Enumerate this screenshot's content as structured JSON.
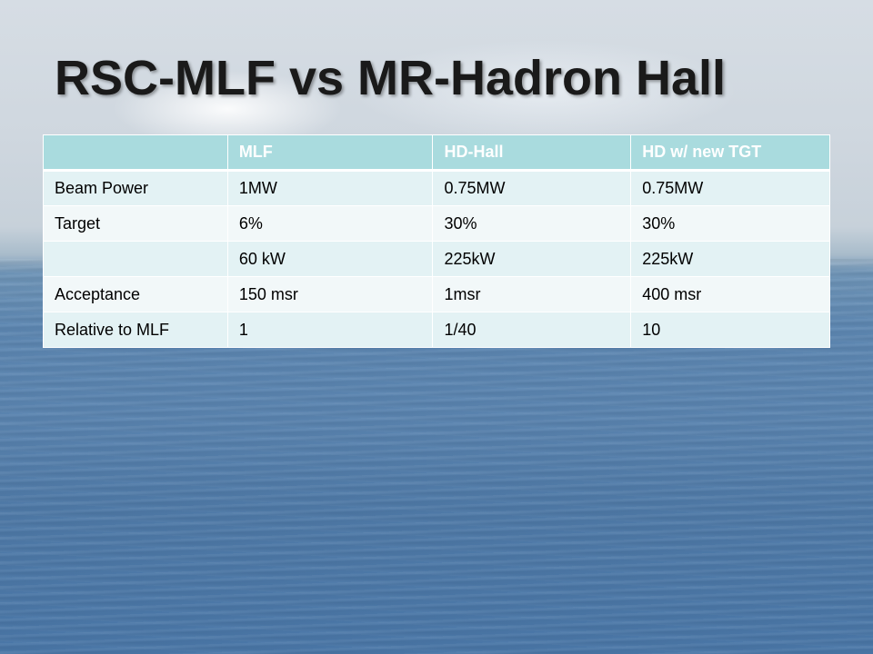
{
  "slide": {
    "title": "RSC-MLF vs MR-Hadron Hall"
  },
  "table": {
    "headers": [
      "",
      "MLF",
      "HD-Hall",
      "HD w/ new TGT"
    ],
    "rows": [
      [
        "Beam Power",
        "1MW",
        "0.75MW",
        "0.75MW"
      ],
      [
        "Target",
        "6%",
        "30%",
        "30%"
      ],
      [
        "",
        "60 kW",
        "225kW",
        "225kW"
      ],
      [
        "Acceptance",
        "150 msr",
        "1msr",
        "400 msr"
      ],
      [
        "Relative to MLF",
        "1",
        "1/40",
        "10"
      ]
    ]
  }
}
